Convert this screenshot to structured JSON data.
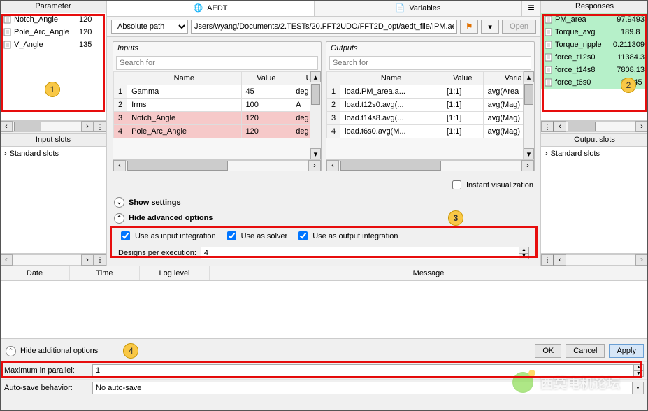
{
  "parameter_panel": {
    "title": "Parameter",
    "rows": [
      {
        "name": "Notch_Angle",
        "value": "120"
      },
      {
        "name": "Pole_Arc_Angle",
        "value": "120"
      },
      {
        "name": "V_Angle",
        "value": "135"
      }
    ],
    "badge": "1"
  },
  "responses_panel": {
    "title": "Responses",
    "rows": [
      {
        "name": "PM_area",
        "value": "97.9493"
      },
      {
        "name": "Torque_avg",
        "value": "189.8"
      },
      {
        "name": "Torque_ripple",
        "value": "0.211309"
      },
      {
        "name": "force_t12s0",
        "value": "11384.3"
      },
      {
        "name": "force_t14s8",
        "value": "7808.13"
      },
      {
        "name": "force_t6s0",
        "value": "10745"
      }
    ],
    "badge": "2",
    "row_bg": "#b6f0c9"
  },
  "input_slots": {
    "title": "Input slots",
    "expander_label": "Standard slots"
  },
  "output_slots": {
    "title": "Output slots",
    "expander_label": "Standard slots"
  },
  "tabs": {
    "aedt": "AEDT",
    "variables": "Variables"
  },
  "path": {
    "type_label": "Absolute path",
    "value": "Jsers/wyang/Documents/2.TESTs/20.FFT2UDO/FFT2D_opt/aedt_file/IPM.aedt",
    "open": "Open"
  },
  "inputs_table": {
    "title": "Inputs",
    "search_placeholder": "Search for",
    "cols": [
      "Name",
      "Value",
      "Unit"
    ],
    "col3_visible": "Un",
    "rows": [
      {
        "idx": "1",
        "name": "Gamma",
        "value": "45",
        "unit": "deg",
        "hl": false
      },
      {
        "idx": "2",
        "name": "Irms",
        "value": "100",
        "unit": "A",
        "hl": false
      },
      {
        "idx": "3",
        "name": "Notch_Angle",
        "value": "120",
        "unit": "deg",
        "hl": true
      },
      {
        "idx": "4",
        "name": "Pole_Arc_Angle",
        "value": "120",
        "unit": "deg",
        "hl": true
      }
    ]
  },
  "outputs_table": {
    "title": "Outputs",
    "search_placeholder": "Search for",
    "cols": [
      "Name",
      "Value",
      "Variable"
    ],
    "col3_visible": "Varia",
    "rows": [
      {
        "idx": "1",
        "name": "load.PM_area.a...",
        "value": "[1:1]",
        "var": "avg(Area"
      },
      {
        "idx": "2",
        "name": "load.t12s0.avg(...",
        "value": "[1:1]",
        "var": "avg(Mag)"
      },
      {
        "idx": "3",
        "name": "load.t14s8.avg(...",
        "value": "[1:1]",
        "var": "avg(Mag)"
      },
      {
        "idx": "4",
        "name": "load.t6s0.avg(M...",
        "value": "[1:1]",
        "var": "avg(Mag)"
      }
    ]
  },
  "instant_viz": "Instant visualization",
  "show_settings": "Show settings",
  "hide_advanced": "Hide advanced options",
  "adv": {
    "use_input": "Use as input integration",
    "use_solver": "Use as solver",
    "use_output": "Use as output integration",
    "designs_label": "Designs per execution:",
    "designs_value": "4",
    "badge": "3"
  },
  "log": {
    "cols": {
      "date": "Date",
      "time": "Time",
      "level": "Log level",
      "msg": "Message"
    }
  },
  "bottom": {
    "hide_additional": "Hide additional options",
    "badge": "4",
    "ok": "OK",
    "cancel": "Cancel",
    "apply": "Apply"
  },
  "forms": {
    "max_parallel_label": "Maximum in parallel:",
    "max_parallel_value": "1",
    "autosave_label": "Auto-save behavior:",
    "autosave_value": "No auto-save"
  },
  "watermark": "西莫电机论坛"
}
